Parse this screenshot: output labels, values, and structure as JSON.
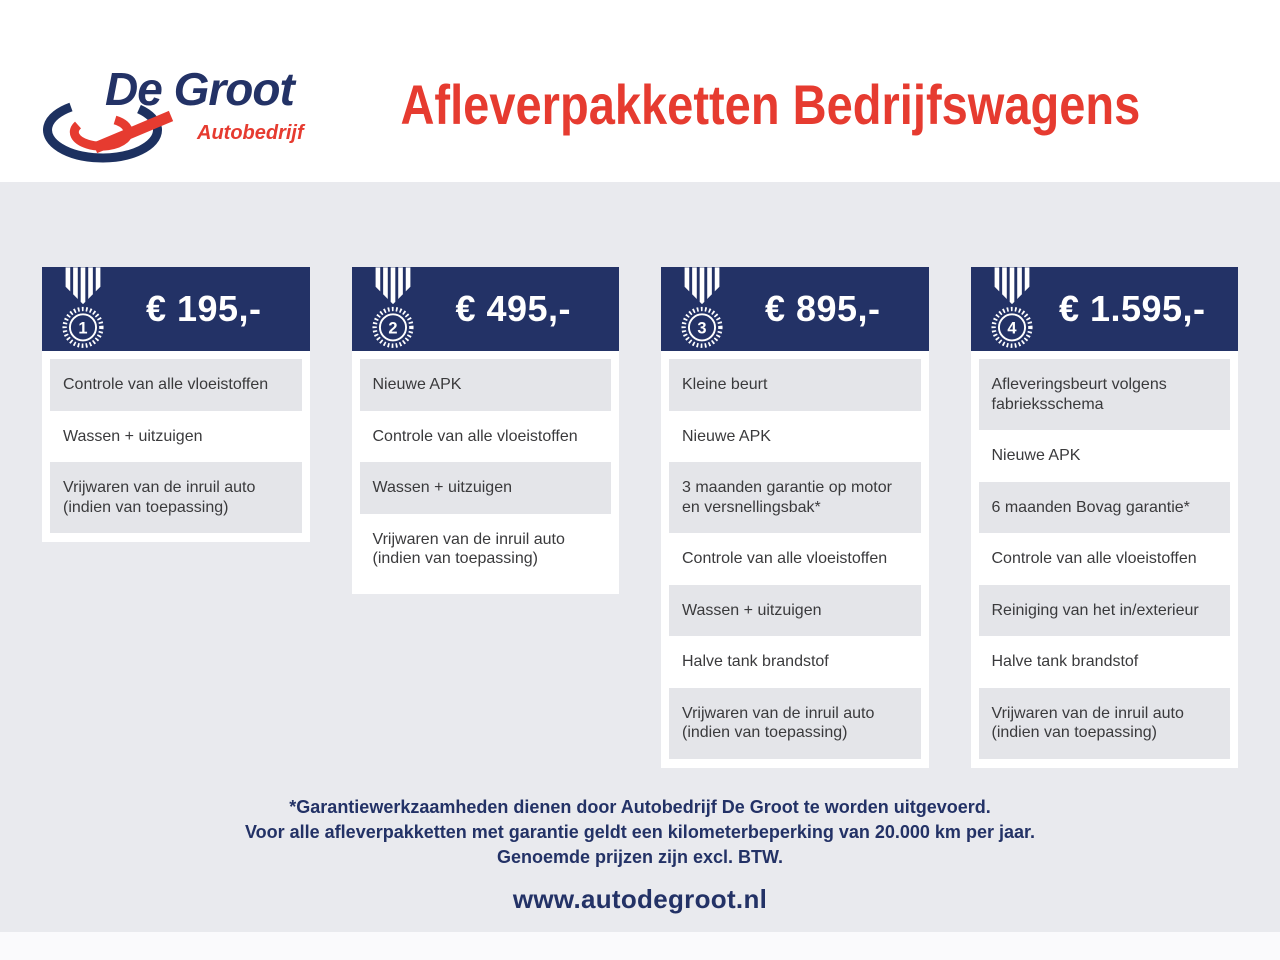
{
  "logo": {
    "name": "De Groot",
    "subtitle": "Autobedrijf"
  },
  "header": {
    "title": "Afleverpakketten Bedrijfswagens"
  },
  "packages": [
    {
      "rank": "1",
      "price": "€ 195,-",
      "items": [
        "Controle van alle vloeistoffen",
        "Wassen + uitzuigen",
        "Vrijwaren van de inruil auto (indien van toepassing)"
      ]
    },
    {
      "rank": "2",
      "price": "€ 495,-",
      "items": [
        "Nieuwe APK",
        "Controle van alle vloeistoffen",
        "Wassen + uitzuigen",
        "Vrijwaren van de inruil auto (indien van toepassing)"
      ]
    },
    {
      "rank": "3",
      "price": "€ 895,-",
      "items": [
        "Kleine beurt",
        "Nieuwe APK",
        "3 maanden garantie op motor en versnellingsbak*",
        "Controle van alle vloeistoffen",
        "Wassen + uitzuigen",
        "Halve tank brandstof",
        "Vrijwaren van de inruil auto (indien van toepassing)"
      ]
    },
    {
      "rank": "4",
      "price": "€ 1.595,-",
      "items": [
        "Afleveringsbeurt volgens fabrieksschema",
        "Nieuwe APK",
        "6 maanden Bovag garantie*",
        "Controle van alle vloeistoffen",
        "Reiniging van het in/exterieur",
        "Halve tank brandstof",
        "Vrijwaren van de inruil auto (indien van toepassing)"
      ]
    }
  ],
  "footer": {
    "lines": [
      "*Garantiewerkzaamheden dienen door Autobedrijf De Groot te worden uitgevoerd.",
      "Voor alle afleverpakketten met garantie geldt een kilometerbeperking van 20.000 km per jaar.",
      "Genoemde prijzen zijn excl. BTW."
    ],
    "website": "www.autodegroot.nl"
  },
  "colors": {
    "navy": "#233266",
    "red": "#e63b30",
    "page_bg": "#e9eaee",
    "row_bg": "#e4e5e9",
    "card_bg": "#ffffff",
    "item_text": "#3a3a3c"
  }
}
